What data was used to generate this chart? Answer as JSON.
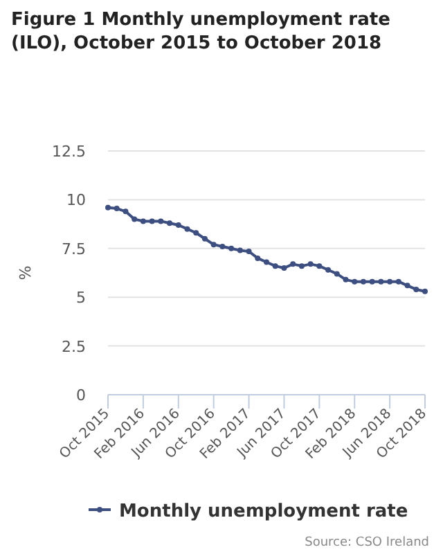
{
  "chart_data": {
    "type": "line",
    "title": "Figure 1 Monthly unemployment rate (ILO), October 2015 to October 2018",
    "ylabel": "%",
    "categories": [
      "Oct 2015",
      null,
      null,
      null,
      "Feb 2016",
      null,
      null,
      null,
      "Jun 2016",
      null,
      null,
      null,
      "Oct 2016",
      null,
      null,
      null,
      "Feb 2017",
      null,
      null,
      null,
      "Jun 2017",
      null,
      null,
      null,
      "Oct 2017",
      null,
      null,
      null,
      "Feb 2018",
      null,
      null,
      null,
      "Jun 2018",
      null,
      null,
      null,
      "Oct 2018"
    ],
    "series": [
      {
        "name": "Monthly unemployment rate",
        "color": "#3d4f80",
        "values": [
          9.6,
          9.55,
          9.4,
          9.0,
          8.9,
          8.9,
          8.9,
          8.8,
          8.7,
          8.5,
          8.3,
          8.0,
          7.7,
          7.6,
          7.5,
          7.4,
          7.35,
          7.0,
          6.8,
          6.6,
          6.5,
          6.7,
          6.6,
          6.7,
          6.6,
          6.4,
          6.2,
          5.9,
          5.8,
          5.8,
          5.8,
          5.8,
          5.8,
          5.8,
          5.6,
          5.4,
          5.3
        ]
      }
    ],
    "ylim": [
      0,
      12.5
    ],
    "yticks": [
      0,
      2.5,
      5,
      7.5,
      10,
      12.5
    ],
    "grid": "y",
    "legend": "bottom",
    "marker": "circle",
    "line_style": "solid",
    "annotations": [
      "Source: CSO Ireland"
    ]
  }
}
